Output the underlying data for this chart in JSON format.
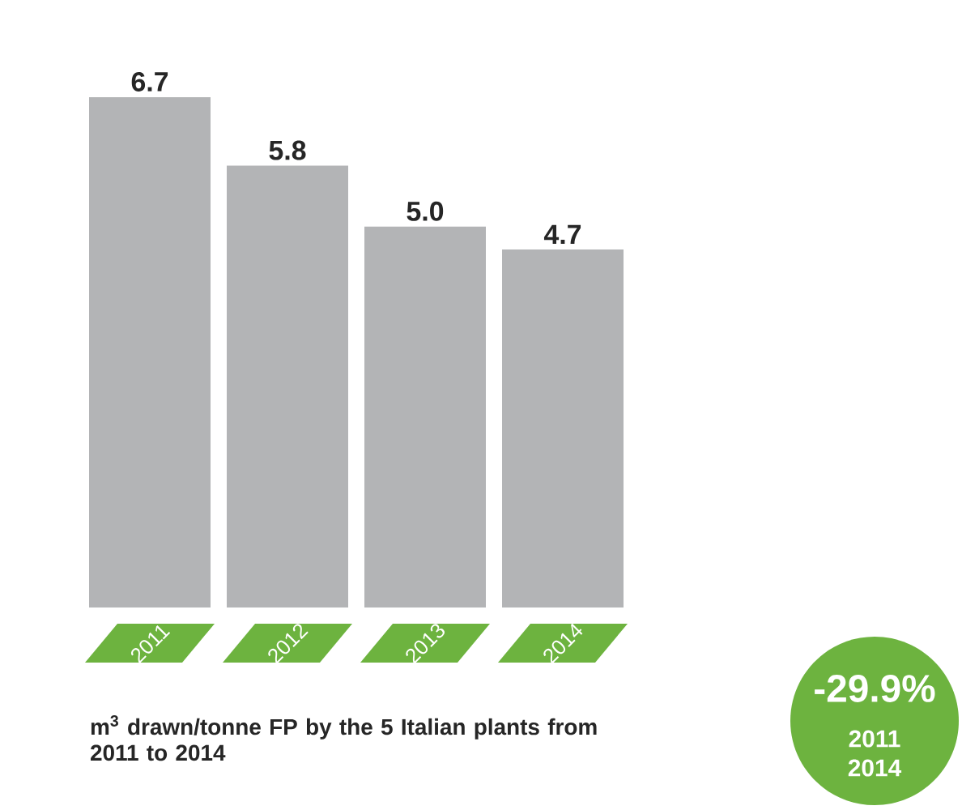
{
  "chart_data": {
    "type": "bar",
    "categories": [
      "2011",
      "2012",
      "2013",
      "2014"
    ],
    "values": [
      6.7,
      5.8,
      5.0,
      4.7
    ],
    "color": "#b3b4b6",
    "value_labels": [
      "6.7",
      "5.8",
      "5.0",
      "4.7"
    ],
    "tick_labels": "x",
    "annotations": [
      "m$^{3}$ drawn/tonne FP by the 5 Italian plants from 2011 to 2014",
      "-29.9%",
      "2011",
      "2014"
    ]
  }
}
